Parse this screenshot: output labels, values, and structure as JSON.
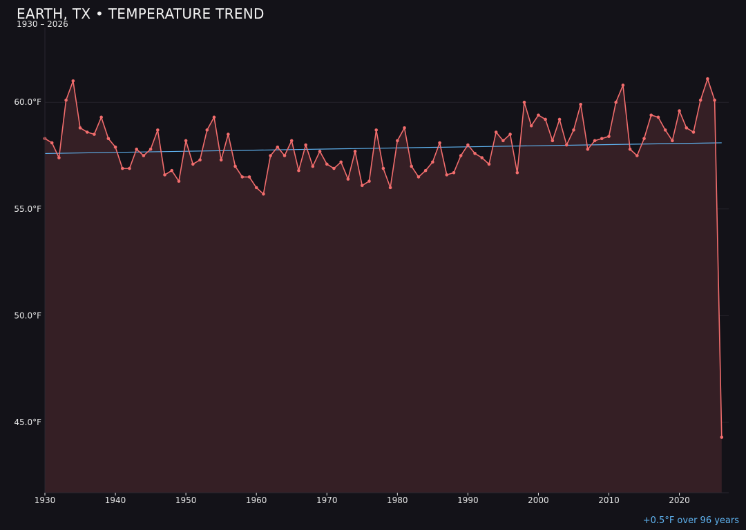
{
  "header": {
    "title": "EARTH, TX • TEMPERATURE TREND",
    "subtitle": "1930 – 2026"
  },
  "footer": {
    "trend_note": "+0.5°F over 96 years"
  },
  "colors": {
    "background": "#131218",
    "line": "#f26d6d",
    "area_fill": "#351f25",
    "trend": "#5fb3f0",
    "grid": "#25222a",
    "text": "#e6e6e6"
  },
  "chart_data": {
    "type": "line",
    "title": "EARTH, TX • TEMPERATURE TREND",
    "subtitle": "1930 – 2026",
    "xlabel": "",
    "ylabel": "",
    "x_ticks": [
      1930,
      1940,
      1950,
      1960,
      1970,
      1980,
      1990,
      2000,
      2010,
      2020
    ],
    "y_ticks": [
      45.0,
      50.0,
      55.0,
      60.0
    ],
    "y_tick_labels": [
      "45.0°F",
      "50.0°F",
      "55.0°F",
      "60.0°F"
    ],
    "xlim": [
      1930,
      2027
    ],
    "ylim": [
      41.7,
      63.5
    ],
    "grid": true,
    "area_fill": true,
    "x": [
      1930,
      1931,
      1932,
      1933,
      1934,
      1935,
      1936,
      1937,
      1938,
      1939,
      1940,
      1941,
      1942,
      1943,
      1944,
      1945,
      1946,
      1947,
      1948,
      1949,
      1950,
      1951,
      1952,
      1953,
      1954,
      1955,
      1956,
      1957,
      1958,
      1959,
      1960,
      1961,
      1962,
      1963,
      1964,
      1965,
      1966,
      1967,
      1968,
      1969,
      1970,
      1971,
      1972,
      1973,
      1974,
      1975,
      1976,
      1977,
      1978,
      1979,
      1980,
      1981,
      1982,
      1983,
      1984,
      1985,
      1986,
      1987,
      1988,
      1989,
      1990,
      1991,
      1992,
      1993,
      1994,
      1995,
      1996,
      1997,
      1998,
      1999,
      2000,
      2001,
      2002,
      2003,
      2004,
      2005,
      2006,
      2007,
      2008,
      2009,
      2010,
      2011,
      2012,
      2013,
      2014,
      2015,
      2016,
      2017,
      2018,
      2019,
      2020,
      2021,
      2022,
      2023,
      2024,
      2025,
      2026
    ],
    "series": [
      {
        "values": [
          58.3,
          58.1,
          57.4,
          60.1,
          61.0,
          58.8,
          58.6,
          58.5,
          59.3,
          58.3,
          57.9,
          56.9,
          56.9,
          57.8,
          57.5,
          57.8,
          58.7,
          56.6,
          56.8,
          56.3,
          58.2,
          57.1,
          57.3,
          58.7,
          59.3,
          57.3,
          58.5,
          57.0,
          56.5,
          56.5,
          56.0,
          55.7,
          57.5,
          57.9,
          57.5,
          58.2,
          56.8,
          58.0,
          57.0,
          57.7,
          57.1,
          56.9,
          57.2,
          56.4,
          57.7,
          56.1,
          56.3,
          58.7,
          56.9,
          56.0,
          58.2,
          58.8,
          57.0,
          56.5,
          56.8,
          57.2,
          58.1,
          56.6,
          56.7,
          57.5,
          58.0,
          57.6,
          57.4,
          57.1,
          58.6,
          58.2,
          58.5,
          56.7,
          60.0,
          58.9,
          59.4,
          59.2,
          58.2,
          59.2,
          58.0,
          58.7,
          59.9,
          57.8,
          58.2,
          58.3,
          58.4,
          60.0,
          60.8,
          57.8,
          57.5,
          58.3,
          59.4,
          59.3,
          58.7,
          58.2,
          59.6,
          58.8,
          58.6,
          60.1,
          61.1,
          60.1,
          44.3
        ]
      }
    ],
    "trend_line": {
      "x": [
        1930,
        2026
      ],
      "y": [
        57.6,
        58.1
      ]
    },
    "annotation": "+0.5°F over 96 years"
  }
}
